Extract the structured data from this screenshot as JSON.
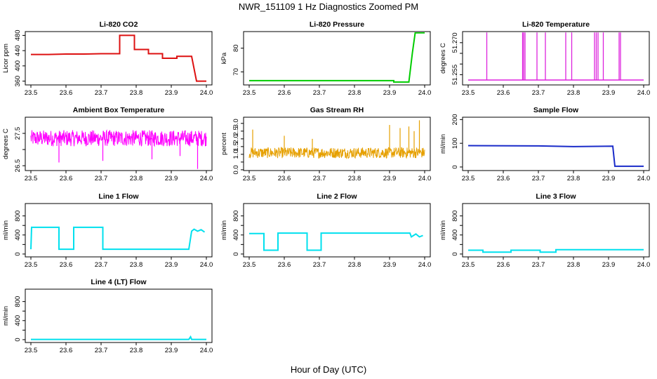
{
  "title": "NWR_151109  1 Hz Diagnostics Zoomed PM",
  "xlabel": "Hour of Day (UTC)",
  "chart_data": [
    {
      "type": "line",
      "title": "Li-820 CO2",
      "ylabel": "Licor ppm",
      "color": "#dd1111",
      "xlim": [
        23.5,
        24.0
      ],
      "ylim": [
        350,
        490
      ],
      "yticks": [
        360,
        400,
        440,
        480
      ],
      "xticks": [
        "23.5",
        "23.6",
        "23.7",
        "23.8",
        "23.9",
        "24.0"
      ],
      "series": [
        {
          "name": "CO2",
          "points": [
            [
              23.5,
              430
            ],
            [
              23.55,
              430
            ],
            [
              23.6,
              431
            ],
            [
              23.65,
              431
            ],
            [
              23.7,
              432
            ],
            [
              23.753,
              432
            ],
            [
              23.753,
              480
            ],
            [
              23.795,
              480
            ],
            [
              23.795,
              443
            ],
            [
              23.835,
              443
            ],
            [
              23.835,
              432
            ],
            [
              23.875,
              432
            ],
            [
              23.875,
              420
            ],
            [
              23.916,
              420
            ],
            [
              23.916,
              425
            ],
            [
              23.958,
              425
            ],
            [
              23.972,
              360
            ],
            [
              24.0,
              360
            ]
          ]
        }
      ]
    },
    {
      "type": "line",
      "title": "Li-820 Pressure",
      "ylabel": "kPa",
      "color": "#00cc00",
      "xlim": [
        23.5,
        24.0
      ],
      "ylim": [
        64.5,
        87
      ],
      "yticks": [
        70,
        80
      ],
      "xticks": [
        "23.5",
        "23.6",
        "23.7",
        "23.8",
        "23.9",
        "24.0"
      ],
      "series": [
        {
          "name": "Pressure",
          "points": [
            [
              23.5,
              66.3
            ],
            [
              23.6,
              66.3
            ],
            [
              23.7,
              66.3
            ],
            [
              23.8,
              66.3
            ],
            [
              23.912,
              66.3
            ],
            [
              23.912,
              65.7
            ],
            [
              23.955,
              65.7
            ],
            [
              23.965,
              78
            ],
            [
              23.973,
              86.5
            ],
            [
              24.0,
              86.5
            ]
          ]
        }
      ]
    },
    {
      "type": "line",
      "title": "Li-820 Temperature",
      "ylabel": "degrees C",
      "color": "#dd22dd",
      "xlim": [
        23.5,
        24.0
      ],
      "ylim": [
        51.2502,
        51.2752
      ],
      "yticks": [
        51.255,
        51.26,
        51.265,
        51.27
      ],
      "ytick_labels": [
        "51.255",
        "",
        "",
        "51.270"
      ],
      "xticks": [
        "23.5",
        "23.6",
        "23.7",
        "23.8",
        "23.9",
        "24.0"
      ],
      "baseline": 51.2525,
      "high": 51.2748,
      "spikes": [
        23.553,
        23.655,
        23.658,
        23.662,
        23.696,
        23.72,
        23.778,
        23.795,
        23.86,
        23.865,
        23.87,
        23.885,
        23.93,
        23.934
      ]
    },
    {
      "type": "line",
      "title": "Ambient Box Temperature",
      "ylabel": "degrees C",
      "color": "#ff00ff",
      "xlim": [
        23.5,
        24.0
      ],
      "ylim": [
        26.35,
        28.0
      ],
      "yticks": [
        26.5,
        27.0,
        27.5
      ],
      "ytick_labels": [
        "26.5",
        "",
        "27.5"
      ],
      "xticks": [
        "23.5",
        "23.6",
        "23.7",
        "23.8",
        "23.9",
        "24.0"
      ],
      "noise": {
        "center": 27.35,
        "amplitude": 0.25,
        "dips": [
          [
            23.58,
            26.6
          ],
          [
            23.705,
            26.65
          ],
          [
            23.845,
            26.7
          ],
          [
            23.975,
            26.4
          ],
          [
            23.925,
            26.8
          ]
        ]
      }
    },
    {
      "type": "line",
      "title": "Gas Stream RH",
      "ylabel": "percent",
      "color": "#e6a000",
      "xlim": [
        23.5,
        24.0
      ],
      "ylim": [
        -0.05,
        3.4
      ],
      "yticks": [
        0.0,
        0.5,
        1.0,
        1.5,
        2.0,
        2.5,
        3.0
      ],
      "ytick_labels": [
        "0.0",
        "",
        "1.0",
        "1.5",
        "2.0",
        "2.5",
        "3.0"
      ],
      "xticks": [
        "23.5",
        "23.6",
        "23.7",
        "23.8",
        "23.9",
        "24.0"
      ],
      "noise": {
        "center": 1.1,
        "amplitude": 0.35,
        "peaks": [
          [
            23.51,
            2.6
          ],
          [
            23.6,
            2.2
          ],
          [
            23.68,
            2.0
          ],
          [
            23.9,
            2.9
          ],
          [
            23.93,
            2.7
          ],
          [
            23.955,
            2.8
          ],
          [
            23.97,
            2.5
          ],
          [
            23.985,
            3.2
          ]
        ]
      }
    },
    {
      "type": "line",
      "title": "Sample Flow",
      "ylabel": "ml/min",
      "color": "#1a2bc9",
      "xlim": [
        23.5,
        24.0
      ],
      "ylim": [
        -15,
        210
      ],
      "yticks": [
        0,
        100,
        200
      ],
      "xticks": [
        "23.5",
        "23.6",
        "23.7",
        "23.8",
        "23.9",
        "24.0"
      ],
      "series": [
        {
          "name": "Sample Flow",
          "points": [
            [
              23.5,
              90
            ],
            [
              23.7,
              89
            ],
            [
              23.8,
              86
            ],
            [
              23.912,
              88
            ],
            [
              23.918,
              3
            ],
            [
              24.0,
              3
            ]
          ]
        }
      ]
    },
    {
      "type": "line",
      "title": "Line 1 Flow",
      "ylabel": "ml/min",
      "color": "#00e0ee",
      "xlim": [
        23.5,
        24.0
      ],
      "ylim": [
        -60,
        1060
      ],
      "yticks": [
        0,
        200,
        400,
        600,
        800
      ],
      "ytick_labels": [
        "0",
        "",
        "400",
        "",
        "800"
      ],
      "xticks": [
        "23.5",
        "23.6",
        "23.7",
        "23.8",
        "23.9",
        "24.0"
      ],
      "series": [
        {
          "name": "Line 1",
          "points": [
            [
              23.5,
              100
            ],
            [
              23.502,
              560
            ],
            [
              23.58,
              560
            ],
            [
              23.58,
              100
            ],
            [
              23.622,
              100
            ],
            [
              23.622,
              560
            ],
            [
              23.705,
              560
            ],
            [
              23.705,
              100
            ],
            [
              23.95,
              100
            ],
            [
              23.958,
              480
            ],
            [
              23.965,
              520
            ],
            [
              23.975,
              480
            ],
            [
              23.985,
              510
            ],
            [
              23.995,
              460
            ]
          ]
        }
      ]
    },
    {
      "type": "line",
      "title": "Line 2 Flow",
      "ylabel": "ml/min",
      "color": "#00e0ee",
      "xlim": [
        23.5,
        24.0
      ],
      "ylim": [
        -60,
        1060
      ],
      "yticks": [
        0,
        200,
        400,
        600,
        800
      ],
      "ytick_labels": [
        "0",
        "",
        "400",
        "",
        "800"
      ],
      "xticks": [
        "23.5",
        "23.6",
        "23.7",
        "23.8",
        "23.9",
        "24.0"
      ],
      "series": [
        {
          "name": "Line 2",
          "points": [
            [
              23.5,
              430
            ],
            [
              23.542,
              430
            ],
            [
              23.542,
              80
            ],
            [
              23.582,
              80
            ],
            [
              23.582,
              440
            ],
            [
              23.665,
              440
            ],
            [
              23.665,
              80
            ],
            [
              23.705,
              80
            ],
            [
              23.705,
              440
            ],
            [
              23.958,
              440
            ],
            [
              23.962,
              360
            ],
            [
              23.975,
              420
            ],
            [
              23.985,
              360
            ],
            [
              23.995,
              390
            ]
          ]
        }
      ]
    },
    {
      "type": "line",
      "title": "Line 3 Flow",
      "ylabel": "ml/min",
      "color": "#00e0ee",
      "xlim": [
        23.5,
        24.0
      ],
      "ylim": [
        -60,
        1060
      ],
      "yticks": [
        0,
        200,
        400,
        600,
        800
      ],
      "ytick_labels": [
        "0",
        "",
        "400",
        "",
        "800"
      ],
      "xticks": [
        "23.5",
        "23.6",
        "23.7",
        "23.8",
        "23.9",
        "24.0"
      ],
      "series": [
        {
          "name": "Line 3",
          "points": [
            [
              23.5,
              80
            ],
            [
              23.542,
              80
            ],
            [
              23.542,
              40
            ],
            [
              23.622,
              40
            ],
            [
              23.622,
              80
            ],
            [
              23.705,
              80
            ],
            [
              23.705,
              40
            ],
            [
              23.75,
              40
            ],
            [
              23.75,
              90
            ],
            [
              24.0,
              90
            ]
          ]
        }
      ]
    },
    {
      "type": "line",
      "title": "Line 4 (LT) Flow",
      "ylabel": "ml/min",
      "color": "#00e0ee",
      "xlim": [
        23.5,
        24.0
      ],
      "ylim": [
        -60,
        1060
      ],
      "yticks": [
        0,
        200,
        400,
        600,
        800
      ],
      "ytick_labels": [
        "0",
        "",
        "400",
        "",
        "800"
      ],
      "xticks": [
        "23.5",
        "23.6",
        "23.7",
        "23.8",
        "23.9",
        "24.0"
      ],
      "series": [
        {
          "name": "Line 4",
          "points": [
            [
              23.5,
              5
            ],
            [
              23.95,
              5
            ],
            [
              23.955,
              60
            ],
            [
              23.958,
              5
            ],
            [
              24.0,
              5
            ]
          ]
        }
      ]
    }
  ]
}
